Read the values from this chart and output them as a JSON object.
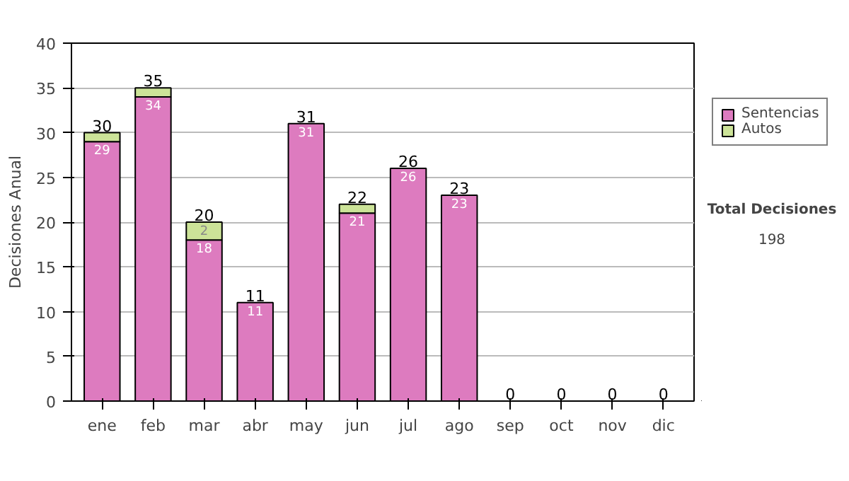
{
  "chart_data": {
    "type": "bar",
    "stacked": true,
    "ylabel": "Decisiones Anual",
    "categories": [
      "ene",
      "feb",
      "mar",
      "abr",
      "may",
      "jun",
      "jul",
      "ago",
      "sep",
      "oct",
      "nov",
      "dic"
    ],
    "series": [
      {
        "name": "Sentencias",
        "color": "#dd7bbf",
        "values": [
          29,
          34,
          18,
          11,
          31,
          21,
          26,
          23,
          0,
          0,
          0,
          0
        ],
        "value_labels": [
          "29",
          "34",
          "18",
          "11",
          "31",
          "21",
          "26",
          "23",
          null,
          null,
          null,
          null
        ]
      },
      {
        "name": "Autos",
        "color": "#cce398",
        "values": [
          1,
          1,
          2,
          0,
          0,
          1,
          0,
          0,
          0,
          0,
          0,
          0
        ],
        "value_labels": [
          null,
          null,
          "2",
          null,
          null,
          null,
          null,
          null,
          null,
          null,
          null,
          null
        ]
      }
    ],
    "totals": [
      "30",
      "35",
      "20",
      "11",
      "31",
      "22",
      "26",
      "23",
      "0",
      "0",
      "0",
      "0"
    ],
    "ylim": [
      0,
      40
    ],
    "yticks": [
      0,
      5,
      10,
      15,
      20,
      25,
      30,
      35,
      40
    ],
    "grid": "y",
    "legend": "right",
    "annotations": [
      "Total Decisiones",
      "198"
    ]
  }
}
